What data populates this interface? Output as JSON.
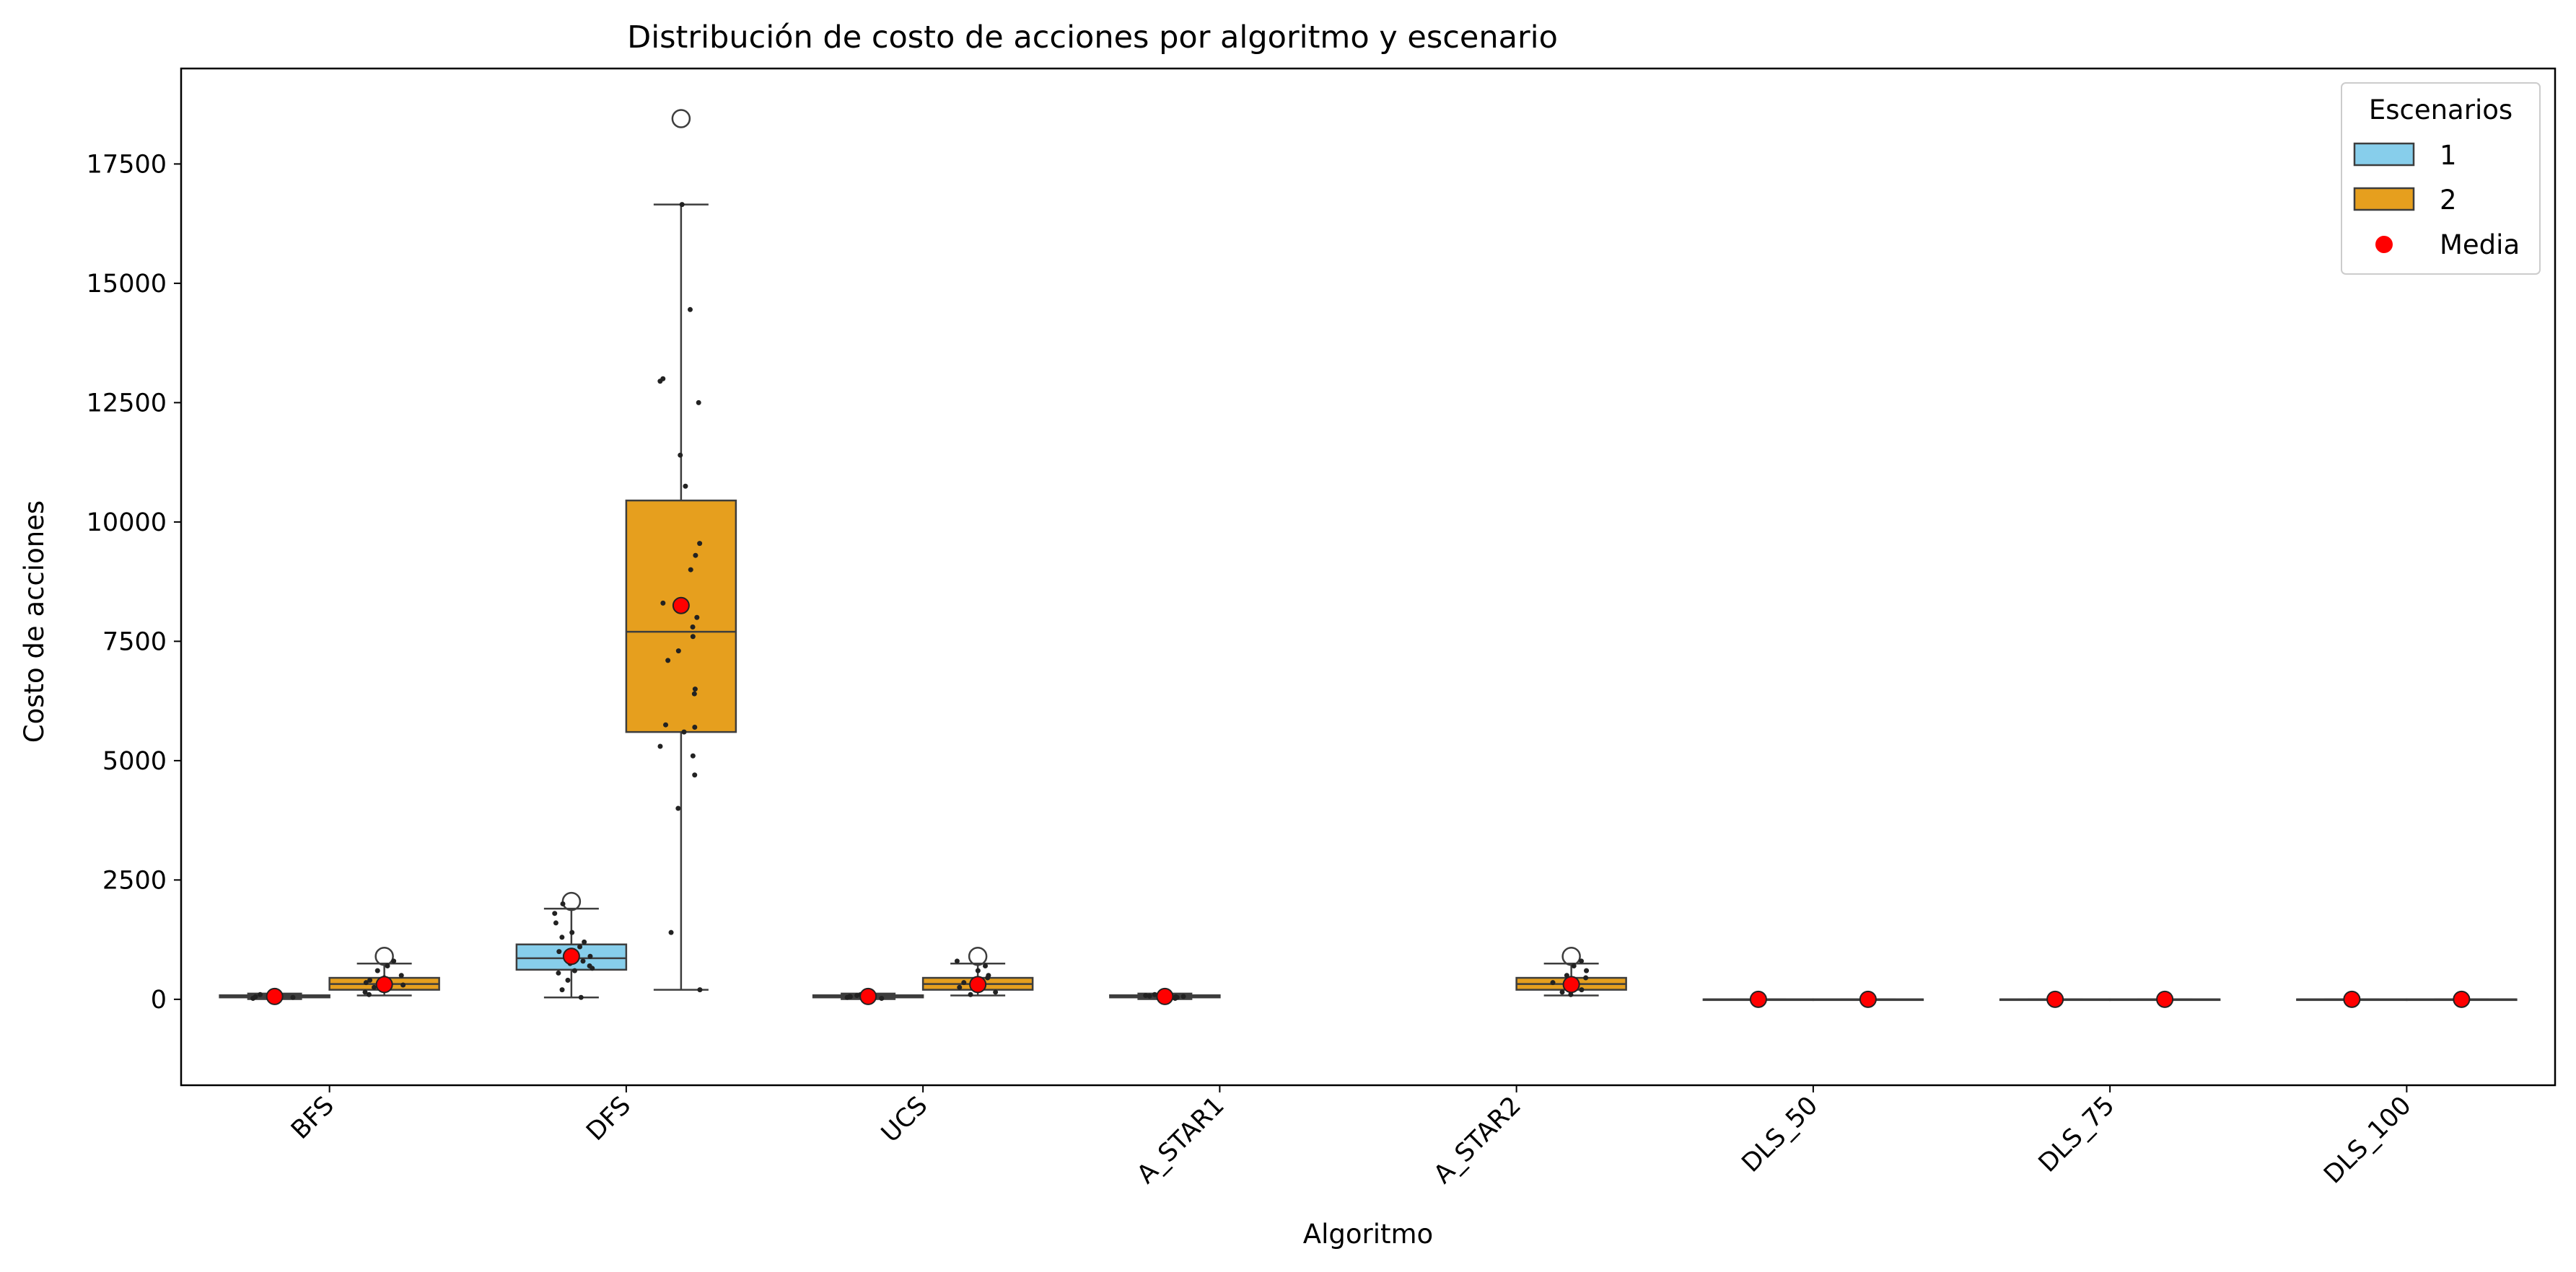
{
  "chart_data": {
    "type": "box",
    "title": "Distribución de costo de acciones por algoritmo y escenario",
    "xlabel": "Algoritmo",
    "ylabel": "Costo de acciones",
    "ylim": [
      -1800,
      19500
    ],
    "yticks": [
      0,
      2500,
      5000,
      7500,
      10000,
      12500,
      15000,
      17500
    ],
    "ytick_labels": [
      "0",
      "2500",
      "5000",
      "7500",
      "10000",
      "12500",
      "15000",
      "17500"
    ],
    "categories": [
      "BFS",
      "DFS",
      "UCS",
      "A_STAR1",
      "A_STAR2",
      "DLS_50",
      "DLS_75",
      "DLS_100"
    ],
    "legend": {
      "title": "Escenarios",
      "position": "top-right",
      "entries": [
        {
          "label": "1",
          "kind": "box",
          "color": "#87CEEB"
        },
        {
          "label": "2",
          "kind": "box",
          "color": "#E69F1E"
        },
        {
          "label": "Media",
          "kind": "point",
          "color": "#FF0000"
        }
      ]
    },
    "colors": {
      "scenario_1": "#87CEEB",
      "scenario_2": "#E69F1E",
      "mean": "#FF0000",
      "edge": "#3d3d3d"
    },
    "series": [
      {
        "name": "1",
        "boxes": [
          {
            "category": "BFS",
            "whislo": 5,
            "q1": 40,
            "med": 60,
            "q3": 85,
            "whishi": 120,
            "mean": 60,
            "fliers": [],
            "points": [
              20,
              40,
              55,
              60,
              70,
              80,
              90,
              100
            ]
          },
          {
            "category": "DFS",
            "whislo": 40,
            "q1": 620,
            "med": 860,
            "q3": 1150,
            "whishi": 1900,
            "mean": 900,
            "fliers": [
              2050
            ],
            "points": [
              40,
              200,
              400,
              550,
              600,
              650,
              700,
              750,
              800,
              850,
              900,
              950,
              1000,
              1100,
              1200,
              1300,
              1400,
              1600,
              1800,
              2000
            ]
          },
          {
            "category": "UCS",
            "whislo": 5,
            "q1": 40,
            "med": 60,
            "q3": 85,
            "whishi": 120,
            "mean": 60,
            "fliers": [],
            "points": [
              20,
              40,
              55,
              60,
              70,
              80,
              90,
              100
            ]
          },
          {
            "category": "A_STAR1",
            "whislo": 5,
            "q1": 40,
            "med": 60,
            "q3": 85,
            "whishi": 120,
            "mean": 60,
            "fliers": [],
            "points": [
              20,
              40,
              55,
              60,
              70,
              80,
              90,
              100
            ]
          },
          {
            "category": "A_STAR2",
            "empty": true
          },
          {
            "category": "DLS_50",
            "whislo": 0,
            "q1": 0,
            "med": 0,
            "q3": 0,
            "whishi": 0,
            "mean": 0,
            "fliers": [],
            "points": []
          },
          {
            "category": "DLS_75",
            "whislo": 0,
            "q1": 0,
            "med": 0,
            "q3": 0,
            "whishi": 0,
            "mean": 0,
            "fliers": [],
            "points": []
          },
          {
            "category": "DLS_100",
            "whislo": 0,
            "q1": 0,
            "med": 0,
            "q3": 0,
            "whishi": 0,
            "mean": 0,
            "fliers": [],
            "points": []
          }
        ]
      },
      {
        "name": "2",
        "boxes": [
          {
            "category": "BFS",
            "whislo": 80,
            "q1": 200,
            "med": 320,
            "q3": 450,
            "whishi": 750,
            "mean": 310,
            "fliers": [
              900
            ],
            "points": [
              100,
              150,
              200,
              250,
              300,
              350,
              400,
              450,
              500,
              600,
              700,
              800
            ]
          },
          {
            "category": "DFS",
            "whislo": 200,
            "q1": 5600,
            "med": 7700,
            "q3": 10450,
            "whishi": 16650,
            "mean": 8250,
            "fliers": [
              18450
            ],
            "points": [
              200,
              1400,
              4000,
              4700,
              5100,
              5300,
              5600,
              5700,
              5750,
              6400,
              6500,
              7100,
              7300,
              7600,
              7800,
              8000,
              8300,
              9000,
              9300,
              9550,
              10750,
              11400,
              12500,
              12950,
              13000,
              14450,
              16650
            ]
          },
          {
            "category": "UCS",
            "whislo": 80,
            "q1": 200,
            "med": 320,
            "q3": 450,
            "whishi": 750,
            "mean": 310,
            "fliers": [
              900
            ],
            "points": [
              100,
              150,
              200,
              250,
              300,
              350,
              400,
              450,
              500,
              600,
              700,
              800
            ]
          },
          {
            "category": "A_STAR1",
            "empty": true
          },
          {
            "category": "A_STAR2",
            "whislo": 80,
            "q1": 200,
            "med": 320,
            "q3": 450,
            "whishi": 750,
            "mean": 310,
            "fliers": [
              900
            ],
            "points": [
              100,
              150,
              200,
              250,
              300,
              350,
              400,
              450,
              500,
              600,
              700,
              800
            ]
          },
          {
            "category": "DLS_50",
            "whislo": 0,
            "q1": 0,
            "med": 0,
            "q3": 0,
            "whishi": 0,
            "mean": 0,
            "fliers": [],
            "points": []
          },
          {
            "category": "DLS_75",
            "whislo": 0,
            "q1": 0,
            "med": 0,
            "q3": 0,
            "whishi": 0,
            "mean": 0,
            "fliers": [],
            "points": []
          },
          {
            "category": "DLS_100",
            "whislo": 0,
            "q1": 0,
            "med": 0,
            "q3": 0,
            "whishi": 0,
            "mean": 0,
            "fliers": [],
            "points": []
          }
        ]
      }
    ]
  }
}
